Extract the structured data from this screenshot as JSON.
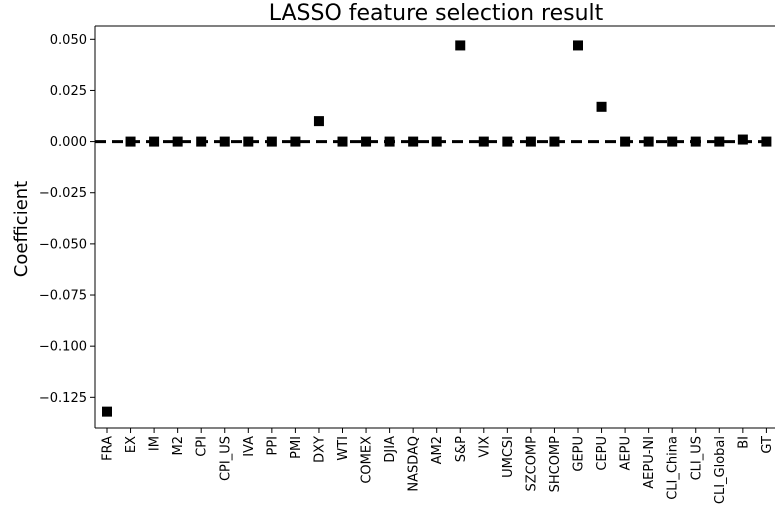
{
  "chart_data": {
    "type": "scatter",
    "title": "LASSO feature selection result",
    "xlabel": "",
    "ylabel": "Coefficient",
    "ylim": [
      -0.14,
      0.0565
    ],
    "yticks": [
      0.05,
      0.025,
      0.0,
      -0.025,
      -0.05,
      -0.075,
      -0.1,
      -0.125
    ],
    "ytick_labels": [
      "0.050",
      "0.025",
      "0.000",
      "−0.025",
      "−0.050",
      "−0.075",
      "−0.100",
      "−0.125"
    ],
    "categories": [
      "FRA",
      "EX",
      "IM",
      "M2",
      "CPI",
      "CPI_US",
      "IVA",
      "PPI",
      "PMI",
      "DXY",
      "WTI",
      "COMEX",
      "DJIA",
      "NASDAQ",
      "AM2",
      "S&P",
      "VIX",
      "UMCSI",
      "SZCOMP",
      "SHCOMP",
      "GEPU",
      "CEPU",
      "AEPU",
      "AEPU-NI",
      "CLI_China",
      "CLI_US",
      "CLI_Global",
      "BI",
      "GT"
    ],
    "values": [
      -0.132,
      0.0,
      0.0,
      0.0,
      0.0,
      0.0,
      0.0,
      0.0,
      0.0,
      0.01,
      0.0,
      0.0,
      0.0,
      0.0,
      0.0,
      0.047,
      0.0,
      0.0,
      0.0,
      0.0,
      0.047,
      0.017,
      0.0,
      0.0,
      0.0,
      0.0,
      0.0,
      0.001,
      0.0
    ],
    "reference_line": {
      "y": 0.0,
      "style": "dashed",
      "color": "#000000"
    },
    "marker": {
      "shape": "square",
      "color": "#000000"
    },
    "grid": false,
    "legend": "none"
  }
}
